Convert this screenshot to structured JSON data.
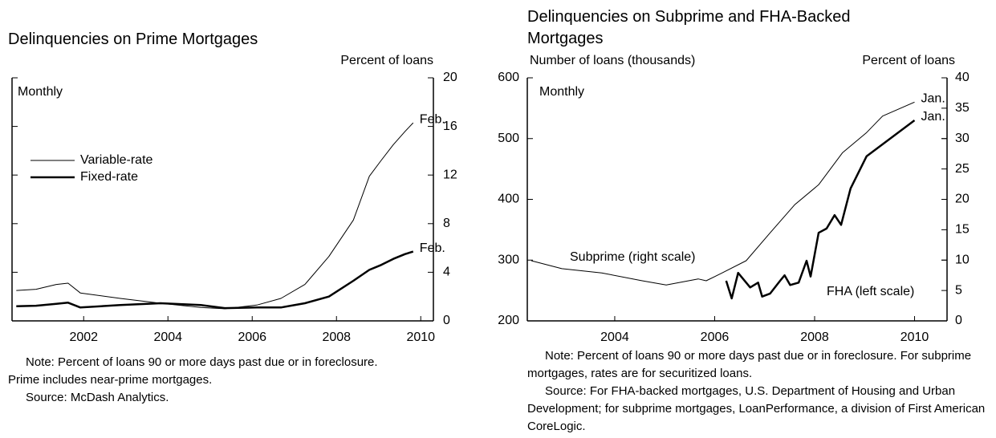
{
  "chart_data": [
    {
      "type": "line",
      "title": "Delinquencies on Prime Mortgages",
      "y_label": "Percent of loans",
      "period_label": "Monthly",
      "xlim": [
        2000.3,
        2010.3
      ],
      "xticks": [
        2002,
        2004,
        2006,
        2008,
        2010
      ],
      "ylim": [
        0,
        20
      ],
      "yticks": [
        0,
        4,
        8,
        12,
        16,
        20
      ],
      "y_axis_side": "right",
      "legend": true,
      "series": [
        {
          "name": "Variable-rate",
          "color": "#000000",
          "width": 1,
          "x": [
            2000.4,
            2000.87,
            2001.35,
            2001.63,
            2001.92,
            2002.87,
            2003.82,
            2004.78,
            2005.35,
            2006.11,
            2006.68,
            2007.25,
            2007.82,
            2008.4,
            2008.78,
            2009.06,
            2009.35,
            2009.63,
            2009.82
          ],
          "values": [
            2.5,
            2.6,
            3.0,
            3.1,
            2.3,
            1.85,
            1.45,
            1.1,
            1.0,
            1.3,
            1.85,
            3.0,
            5.3,
            8.3,
            11.9,
            13.2,
            14.5,
            15.6,
            16.3
          ],
          "end_label": "Feb."
        },
        {
          "name": "Fixed-rate",
          "color": "#000000",
          "width": 2.5,
          "x": [
            2000.4,
            2000.87,
            2001.35,
            2001.63,
            2001.92,
            2002.87,
            2003.82,
            2004.78,
            2005.35,
            2006.11,
            2006.68,
            2007.25,
            2007.82,
            2008.4,
            2008.78,
            2009.06,
            2009.35,
            2009.63,
            2009.82
          ],
          "values": [
            1.2,
            1.25,
            1.4,
            1.5,
            1.1,
            1.3,
            1.45,
            1.3,
            1.05,
            1.1,
            1.1,
            1.45,
            2.0,
            3.3,
            4.2,
            4.6,
            5.1,
            5.5,
            5.7
          ],
          "end_label": "Feb."
        }
      ],
      "notes": [
        "Note:  Percent of loans 90 or more days past due or in foreclosure.  Prime includes near-prime mortgages.",
        "Source:  McDash Analytics."
      ]
    },
    {
      "type": "line",
      "title": "Delinquencies on Subprime and FHA-Backed Mortgages",
      "y_label": "Number of loans (thousands)",
      "y2_label": "Percent of loans",
      "period_label": "Monthly",
      "xlim": [
        2002.25,
        2010.65
      ],
      "xticks": [
        2004,
        2006,
        2008,
        2010
      ],
      "ylim": [
        200,
        600
      ],
      "yticks": [
        200,
        300,
        400,
        500,
        600
      ],
      "y2lim": [
        0,
        40
      ],
      "y2ticks": [
        0,
        5,
        10,
        15,
        20,
        25,
        30,
        35,
        40
      ],
      "legend": false,
      "series": [
        {
          "name": "Subprime (right scale)",
          "color": "#000000",
          "width": 1,
          "axis": "y2",
          "x": [
            2002.33,
            2002.94,
            2003.74,
            2004.55,
            2005.03,
            2005.67,
            2005.83,
            2006.15,
            2006.63,
            2007.11,
            2007.6,
            2008.08,
            2008.56,
            2009.04,
            2009.36,
            2010.0
          ],
          "values": [
            9.9,
            8.6,
            7.9,
            6.6,
            5.9,
            6.9,
            6.6,
            7.9,
            9.9,
            14.5,
            19.1,
            22.4,
            27.7,
            31.0,
            33.7,
            36.0
          ],
          "end_label": "Jan."
        },
        {
          "name": "FHA (left scale)",
          "color": "#000000",
          "width": 2.5,
          "axis": "y",
          "x": [
            2006.23,
            2006.34,
            2006.47,
            2006.71,
            2006.87,
            2006.95,
            2007.11,
            2007.31,
            2007.4,
            2007.51,
            2007.68,
            2007.84,
            2007.92,
            2008.08,
            2008.24,
            2008.4,
            2008.53,
            2008.72,
            2009.04,
            2010.0
          ],
          "values": [
            266,
            237,
            279,
            255,
            263,
            240,
            245,
            266,
            275,
            259,
            263,
            299,
            273,
            345,
            352,
            374,
            358,
            418,
            471,
            530
          ],
          "end_label": "Jan."
        }
      ],
      "notes": [
        "Note:  Percent of loans 90 or more days past due or in foreclosure.  For subprime mortgages, rates are for securitized loans.",
        "Source:  For FHA-backed mortgages, U.S. Department of Housing and Urban Development; for subprime mortgages, LoanPerformance, a division of First American CoreLogic."
      ]
    }
  ]
}
